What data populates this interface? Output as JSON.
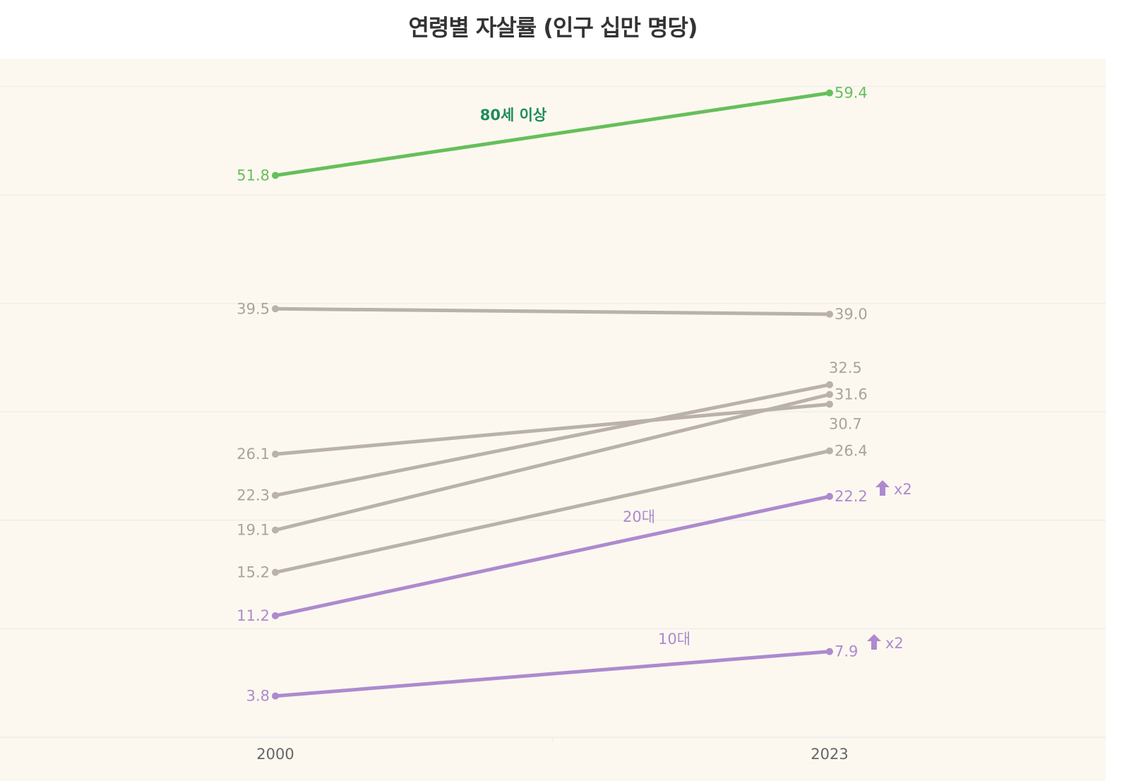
{
  "chart_data": {
    "type": "line",
    "title": "연령별 자살률 (인구 십만 명당)",
    "categories": [
      "2000",
      "2023"
    ],
    "ylim": [
      0,
      62.5
    ],
    "y_gridlines": [
      0,
      10,
      20,
      30,
      40,
      50,
      60
    ],
    "grid": true,
    "legend": "none",
    "series": [
      {
        "name": "80세 이상",
        "values": [
          51.8,
          59.4
        ],
        "color": "#66bf5a",
        "label_color": "#1f8c5c",
        "highlight": true
      },
      {
        "values": [
          39.5,
          39.0
        ],
        "color": "#bab1ab"
      },
      {
        "values": [
          26.1,
          30.7
        ],
        "color": "#bab1ab"
      },
      {
        "values": [
          22.3,
          32.5
        ],
        "color": "#bab1ab"
      },
      {
        "values": [
          19.1,
          31.6
        ],
        "color": "#bab1ab"
      },
      {
        "values": [
          15.2,
          26.4
        ],
        "color": "#bab1ab"
      },
      {
        "name": "20대",
        "values": [
          11.2,
          22.2
        ],
        "color": "#ad8ace",
        "highlight": true,
        "annotation": "x2",
        "annotation_icon": "up-arrow-icon"
      },
      {
        "name": "10대",
        "values": [
          3.8,
          7.9
        ],
        "color": "#ad8ace",
        "highlight": true,
        "annotation": "x2",
        "annotation_icon": "up-arrow-icon"
      }
    ],
    "colors": {
      "background": "#fcf8f0",
      "grid": "#efeeec",
      "value_label_gray": "#aaa29d",
      "axis_text": "#666"
    }
  }
}
